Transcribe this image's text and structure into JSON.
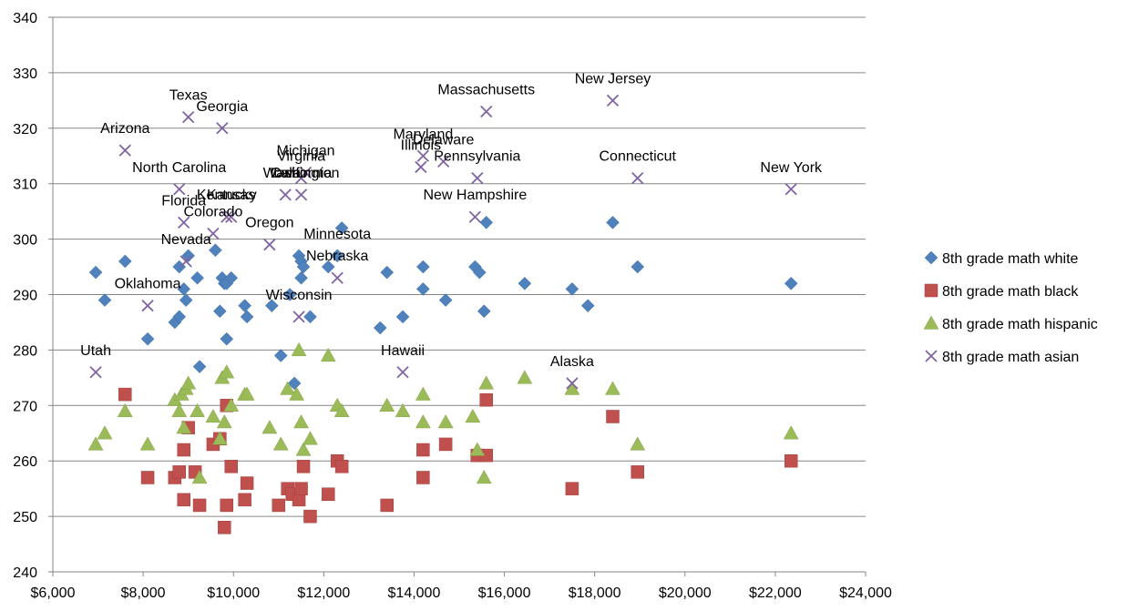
{
  "chart_data": {
    "type": "scatter",
    "title": "",
    "xlabel": "",
    "ylabel": "",
    "xlim": [
      6000,
      24000
    ],
    "ylim": [
      240,
      340
    ],
    "x_ticks": [
      6000,
      8000,
      10000,
      12000,
      14000,
      16000,
      18000,
      20000,
      22000,
      24000
    ],
    "x_tick_labels": [
      "$6,000",
      "$8,000",
      "$10,000",
      "$12,000",
      "$14,000",
      "$16,000",
      "$18,000",
      "$20,000",
      "$22,000",
      "$24,000"
    ],
    "y_ticks": [
      240,
      250,
      260,
      270,
      280,
      290,
      300,
      310,
      320,
      330,
      340
    ],
    "y_tick_labels": [
      "240",
      "250",
      "260",
      "270",
      "280",
      "290",
      "300",
      "310",
      "320",
      "330",
      "340"
    ],
    "grid": "horizontal",
    "legend_position": "right",
    "series": [
      {
        "name": "8th grade math white",
        "marker": "diamond",
        "color": "#4F81BD",
        "x": [
          6950,
          7150,
          7600,
          8100,
          8700,
          8800,
          8800,
          8900,
          8950,
          9000,
          9200,
          9250,
          9600,
          9700,
          9750,
          9800,
          9850,
          9850,
          9950,
          10250,
          10300,
          10850,
          11050,
          11250,
          11350,
          11450,
          11500,
          11500,
          11550,
          11700,
          12100,
          12300,
          12400,
          13250,
          13400,
          13750,
          14200,
          14200,
          14700,
          15350,
          15450,
          15550,
          15600,
          16450,
          17500,
          17850,
          18400,
          18950,
          22350
        ],
        "y": [
          294,
          289,
          296,
          282,
          285,
          286,
          295,
          291,
          289,
          297,
          293,
          277,
          298,
          287,
          293,
          292,
          282,
          292,
          293,
          288,
          286,
          288,
          279,
          290,
          274,
          297,
          296,
          293,
          295,
          286,
          295,
          297,
          302,
          284,
          294,
          286,
          295,
          291,
          289,
          295,
          294,
          287,
          303,
          292,
          291,
          288,
          303,
          295,
          292
        ]
      },
      {
        "name": "8th grade math black",
        "marker": "square",
        "color": "#C0504D",
        "x": [
          7600,
          8100,
          8700,
          8800,
          8900,
          8900,
          9000,
          9150,
          9250,
          9550,
          9700,
          9800,
          9850,
          9850,
          9950,
          10250,
          10300,
          11000,
          11200,
          11300,
          11450,
          11500,
          11550,
          11700,
          12100,
          12300,
          12400,
          13400,
          14200,
          14200,
          14700,
          15400,
          15600,
          15600,
          17500,
          18400,
          18950,
          22350
        ],
        "y": [
          272,
          257,
          257,
          258,
          262,
          253,
          266,
          258,
          252,
          263,
          264,
          248,
          270,
          252,
          259,
          253,
          256,
          252,
          255,
          254,
          253,
          255,
          259,
          250,
          254,
          260,
          259,
          252,
          262,
          257,
          263,
          261,
          271,
          261,
          255,
          268,
          258,
          260
        ]
      },
      {
        "name": "8th grade math hispanic",
        "marker": "triangle",
        "color": "#9BBB59",
        "x": [
          6950,
          7150,
          7600,
          8100,
          8700,
          8800,
          8850,
          8900,
          8950,
          9000,
          9200,
          9250,
          9550,
          9700,
          9750,
          9800,
          9850,
          9950,
          10250,
          10300,
          10800,
          11050,
          11200,
          11400,
          11450,
          11500,
          11550,
          11700,
          12100,
          12300,
          12400,
          13400,
          13750,
          14200,
          14200,
          14700,
          15300,
          15400,
          15550,
          15600,
          16450,
          17500,
          18400,
          18950,
          22350
        ],
        "y": [
          263,
          265,
          269,
          263,
          271,
          269,
          272,
          266,
          273,
          274,
          269,
          257,
          268,
          264,
          275,
          267,
          276,
          270,
          272,
          272,
          266,
          263,
          273,
          272,
          280,
          267,
          262,
          264,
          279,
          270,
          269,
          270,
          269,
          272,
          267,
          267,
          268,
          262,
          257,
          274,
          275,
          273,
          273,
          263,
          265
        ]
      },
      {
        "name": "8th grade math asian",
        "marker": "x",
        "color": "#8064A2",
        "x": [
          6950,
          7600,
          8100,
          8800,
          8900,
          8950,
          9000,
          9550,
          9750,
          9850,
          9950,
          10800,
          11150,
          11450,
          11500,
          11500,
          11600,
          12300,
          13750,
          14150,
          14200,
          14650,
          15350,
          15400,
          15600,
          17500,
          18400,
          18950,
          22350
        ],
        "y": [
          276,
          316,
          288,
          309,
          303,
          296,
          322,
          301,
          320,
          304,
          304,
          299,
          308,
          286,
          311,
          308,
          312,
          293,
          276,
          313,
          315,
          314,
          304,
          311,
          323,
          274,
          325,
          311,
          309
        ]
      }
    ],
    "annotations": [
      {
        "text": "Texas",
        "x": 9000,
        "y": 322
      },
      {
        "text": "Georgia",
        "x": 9750,
        "y": 320
      },
      {
        "text": "Arizona",
        "x": 7600,
        "y": 316
      },
      {
        "text": "North Carolina",
        "x": 8800,
        "y": 309
      },
      {
        "text": "Kentucky",
        "x": 9850,
        "y": 304
      },
      {
        "text": "Kansas",
        "x": 9950,
        "y": 304
      },
      {
        "text": "Florida",
        "x": 8900,
        "y": 303
      },
      {
        "text": "Colorado",
        "x": 9550,
        "y": 301
      },
      {
        "text": "Oregon",
        "x": 10800,
        "y": 299
      },
      {
        "text": "Nevada",
        "x": 8950,
        "y": 296
      },
      {
        "text": "Oklahoma",
        "x": 8100,
        "y": 288
      },
      {
        "text": "Utah",
        "x": 6950,
        "y": 276
      },
      {
        "text": "Virginia",
        "x": 11500,
        "y": 311
      },
      {
        "text": "Michigan",
        "x": 11600,
        "y": 312
      },
      {
        "text": "California",
        "x": 11500,
        "y": 308
      },
      {
        "text": "Iowa",
        "x": 11150,
        "y": 308
      },
      {
        "text": "Washington",
        "x": 11500,
        "y": 308
      },
      {
        "text": "Minnesota",
        "x": 12300,
        "y": 297
      },
      {
        "text": "Nebraska",
        "x": 12300,
        "y": 293
      },
      {
        "text": "Wisconsin",
        "x": 11450,
        "y": 286
      },
      {
        "text": "Massachusetts",
        "x": 15600,
        "y": 323
      },
      {
        "text": "New Jersey",
        "x": 18400,
        "y": 325
      },
      {
        "text": "Maryland",
        "x": 14200,
        "y": 315
      },
      {
        "text": "Illinois",
        "x": 14150,
        "y": 313
      },
      {
        "text": "Delaware",
        "x": 14650,
        "y": 314
      },
      {
        "text": "Pennsylvania",
        "x": 15400,
        "y": 311
      },
      {
        "text": "Connecticut",
        "x": 18950,
        "y": 311
      },
      {
        "text": "New York",
        "x": 22350,
        "y": 309
      },
      {
        "text": "New Hampshire",
        "x": 15350,
        "y": 304
      },
      {
        "text": "Hawaii",
        "x": 13750,
        "y": 276
      },
      {
        "text": "Alaska",
        "x": 17500,
        "y": 274
      }
    ]
  }
}
